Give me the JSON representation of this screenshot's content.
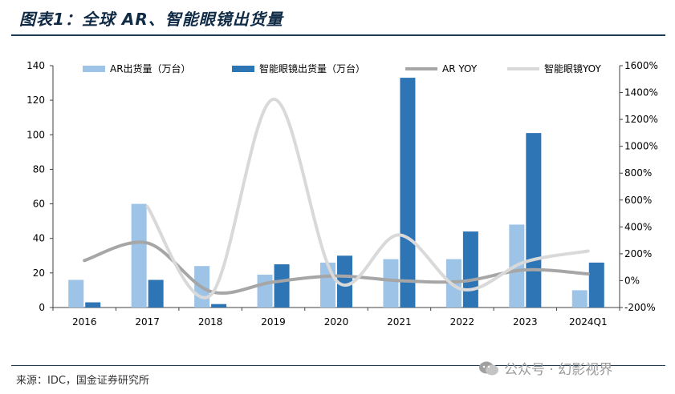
{
  "header": {
    "title": "图表1：全球 AR、智能眼镜出货量"
  },
  "footer": {
    "source": "来源：IDC，国金证券研究所",
    "watermark": "公众号 · 幻影视界"
  },
  "colors": {
    "ar_bar": "#9dc3e6",
    "glasses_bar": "#2e75b6",
    "ar_yoy_line": "#a6a6a6",
    "glasses_yoy_line": "#d9d9d9",
    "title": "#0f2a44"
  },
  "chart_data": {
    "type": "bar",
    "categories": [
      "2016",
      "2017",
      "2018",
      "2019",
      "2020",
      "2021",
      "2022",
      "2023",
      "2024Q1"
    ],
    "series": [
      {
        "name": "AR出货量（万台）",
        "type": "bar",
        "axis": "left",
        "values": [
          16,
          60,
          24,
          19,
          26,
          28,
          28,
          48,
          10
        ]
      },
      {
        "name": "智能眼镜出货量（万台）",
        "type": "bar",
        "axis": "left",
        "values": [
          3,
          16,
          2,
          25,
          30,
          133,
          44,
          101,
          26
        ]
      },
      {
        "name": "AR YOY",
        "type": "line",
        "axis": "right",
        "values": [
          150,
          280,
          -80,
          -10,
          35,
          0,
          -5,
          80,
          50
        ]
      },
      {
        "name": "智能眼镜YOY",
        "type": "line",
        "axis": "right",
        "values": [
          null,
          550,
          -110,
          1350,
          0,
          340,
          -65,
          140,
          220
        ]
      }
    ],
    "y_left": {
      "min": 0,
      "max": 140,
      "ticks": [
        "0",
        "20",
        "40",
        "60",
        "80",
        "100",
        "120",
        "140"
      ]
    },
    "y_right": {
      "min": -200,
      "max": 1600,
      "ticks": [
        "-200%",
        "0%",
        "200%",
        "400%",
        "600%",
        "800%",
        "1000%",
        "1200%",
        "1400%",
        "1600%"
      ]
    },
    "grid": false,
    "legend_position": "top"
  }
}
